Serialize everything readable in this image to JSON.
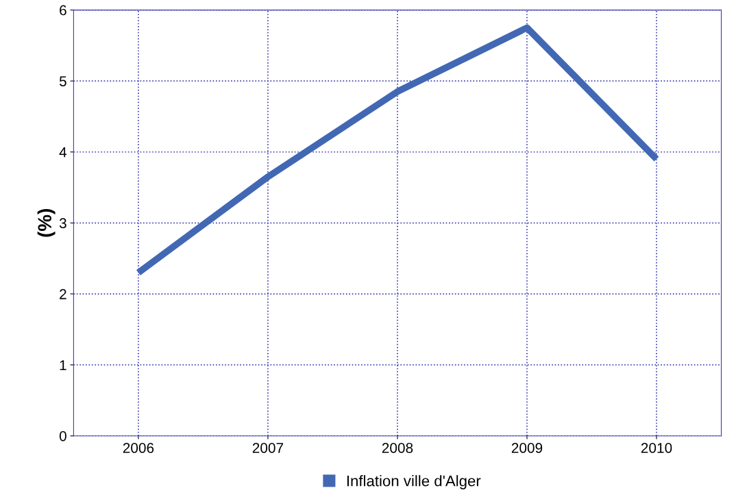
{
  "chart_data": {
    "type": "line",
    "ylabel": "(%)",
    "categories": [
      "2006",
      "2007",
      "2008",
      "2009",
      "2010"
    ],
    "series": [
      {
        "name": "Inflation ville d'Alger",
        "color": "#4268b4",
        "values": [
          2.3,
          3.65,
          4.85,
          5.75,
          3.9
        ]
      }
    ],
    "ylim": [
      0,
      6
    ],
    "yticks": [
      0,
      1,
      2,
      3,
      4,
      5,
      6
    ],
    "grid": true,
    "legend": "bottom",
    "line_style": "solid"
  }
}
